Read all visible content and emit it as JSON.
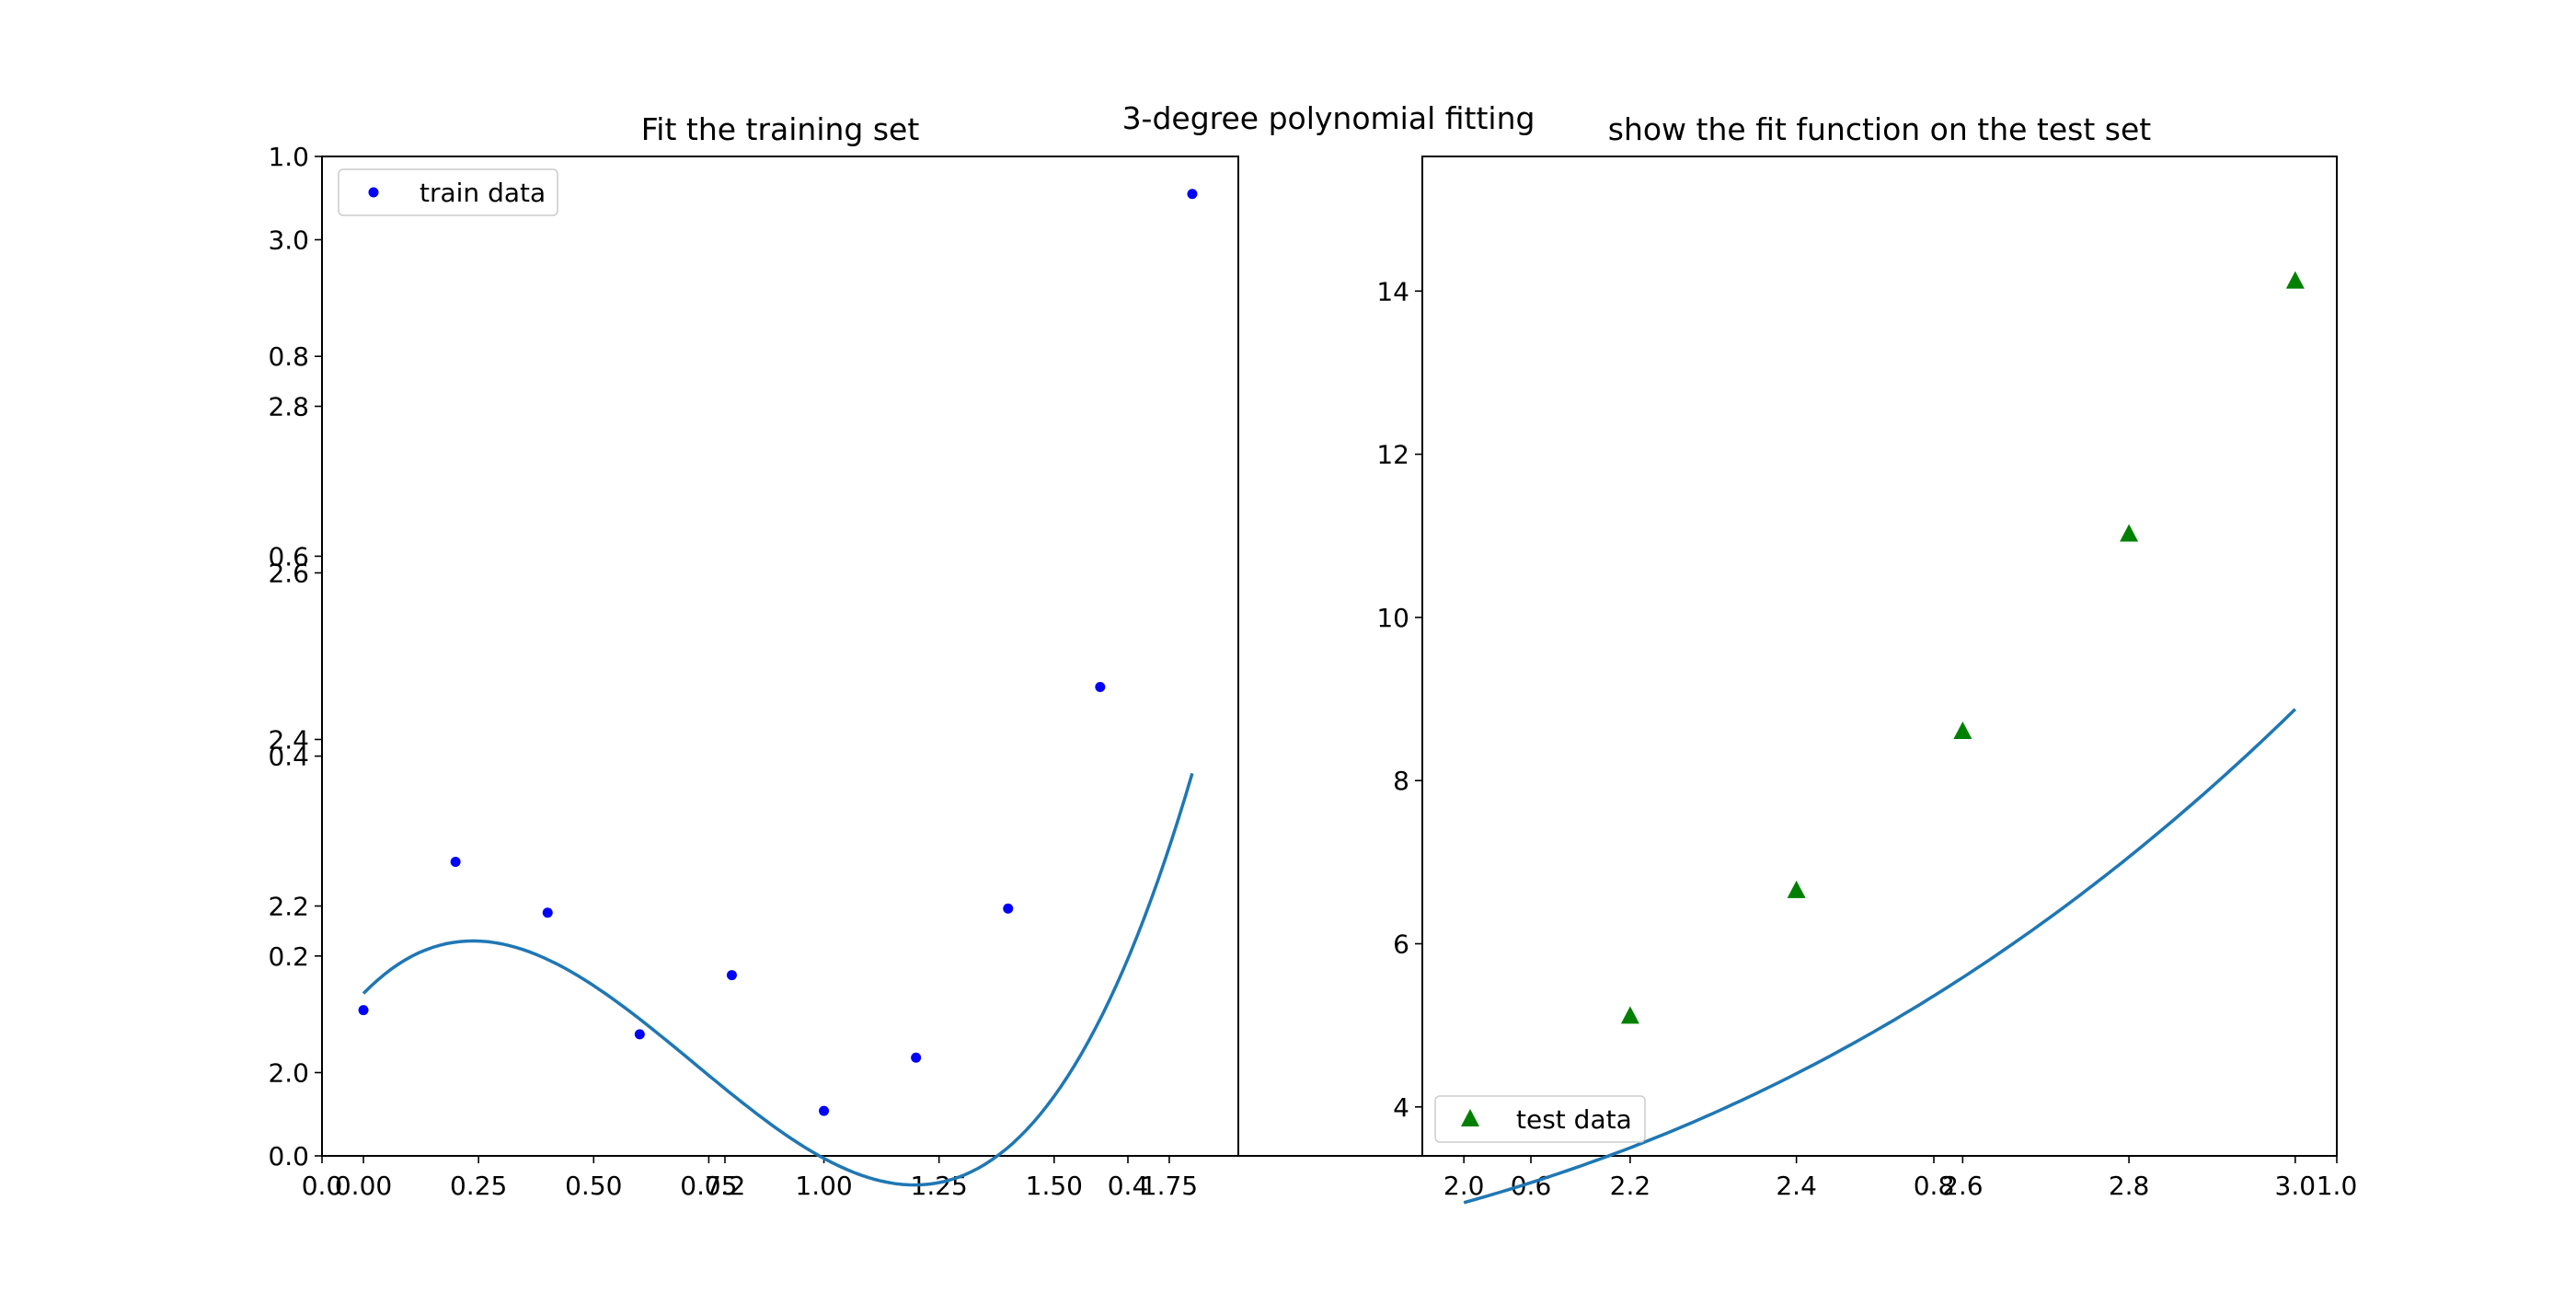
{
  "figure": {
    "suptitle": "3-degree polynomial fitting",
    "background_axes": {
      "x_ticks": [
        "0.0",
        "0.2",
        "0.4",
        "0.6",
        "0.8",
        "1.0"
      ],
      "y_ticks": [
        "0.0",
        "0.2",
        "0.4",
        "0.6",
        "0.8",
        "1.0"
      ]
    }
  },
  "chart_data": [
    {
      "type": "scatter",
      "title": "Fit the training set",
      "xlabel": "",
      "ylabel": "",
      "xlim": [
        -0.09,
        1.9
      ],
      "ylim": [
        1.9,
        3.1
      ],
      "x_ticks": [
        "0.00",
        "0.25",
        "0.50",
        "0.75",
        "1.00",
        "1.25",
        "1.50",
        "1.75"
      ],
      "y_ticks": [
        "2.0",
        "2.2",
        "2.4",
        "2.6",
        "2.8",
        "3.0"
      ],
      "grid": false,
      "legend": {
        "position": "upper left",
        "entries": [
          "train data"
        ]
      },
      "series": [
        {
          "name": "train data",
          "kind": "points",
          "color": "#0000ff",
          "x": [
            0.0,
            0.2,
            0.4,
            0.6,
            0.8,
            1.0,
            1.2,
            1.4,
            1.6,
            1.8
          ],
          "y": [
            2.075,
            2.253,
            2.192,
            2.046,
            2.117,
            1.954,
            2.018,
            2.197,
            2.463,
            3.055
          ]
        },
        {
          "kind": "line",
          "color": "#1f77b4",
          "poly_coefficients": [
            2.095,
            0.568,
            -1.431,
            0.665
          ],
          "x_range": [
            0.0,
            1.8
          ]
        }
      ]
    },
    {
      "type": "scatter",
      "title": "show the fit function on the test set",
      "xlabel": "",
      "ylabel": "",
      "xlim": [
        1.95,
        3.05
      ],
      "ylim": [
        3.4,
        15.65
      ],
      "x_ticks": [
        "2.0",
        "2.2",
        "2.4",
        "2.6",
        "2.8",
        "3.0"
      ],
      "y_ticks": [
        "4",
        "6",
        "8",
        "10",
        "12",
        "14"
      ],
      "grid": false,
      "legend": {
        "position": "lower left",
        "entries": [
          "test data"
        ]
      },
      "series": [
        {
          "name": "test data",
          "kind": "points",
          "marker": "triangle",
          "color": "#008000",
          "x": [
            2.0,
            2.2,
            2.4,
            2.6,
            2.8,
            3.0
          ],
          "y": [
            3.82,
            5.11,
            6.65,
            8.6,
            11.02,
            14.12
          ]
        },
        {
          "kind": "line",
          "color": "#1f77b4",
          "poly_coefficients": [
            2.095,
            0.568,
            -1.431,
            0.665
          ],
          "x_range": [
            2.0,
            3.0
          ]
        }
      ]
    }
  ]
}
